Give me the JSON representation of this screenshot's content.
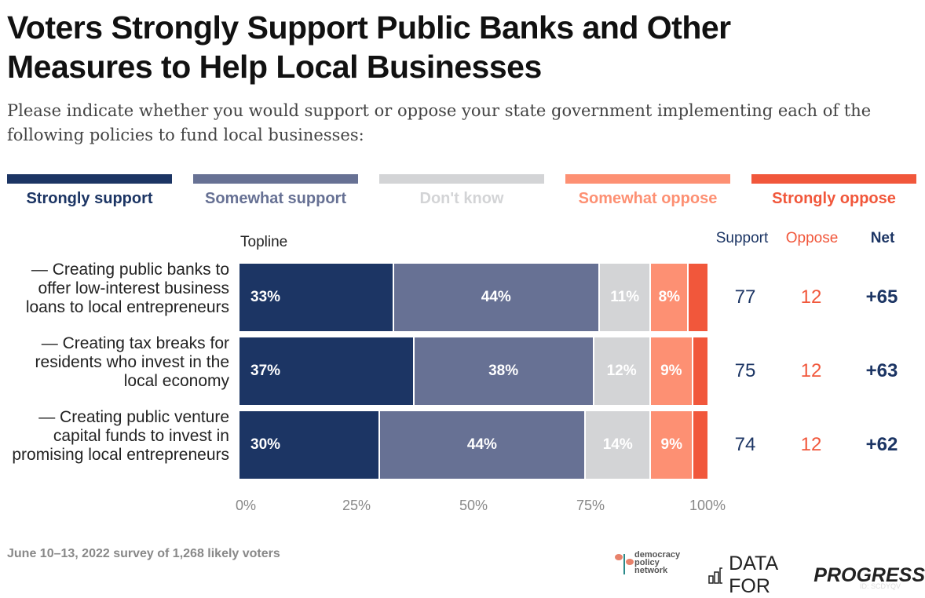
{
  "chart_data": {
    "type": "bar",
    "orientation": "horizontal",
    "stacked": true,
    "title": "Voters Strongly Support Public Banks and Other Measures to Help Local Businesses",
    "subtitle": "Please indicate whether you would support or oppose your state government implementing each of the following policies to fund local businesses:",
    "column_label": "Topline",
    "categories": [
      "— Creating public banks to offer low-interest business loans to local entrepreneurs",
      "— Creating tax breaks for residents who invest in the local economy",
      "— Creating public venture capital funds to invest in promising local entrepreneurs"
    ],
    "series": [
      {
        "name": "Strongly support",
        "color": "#1c3564",
        "values": [
          33,
          37,
          30
        ],
        "labels": [
          "33%",
          "37%",
          "30%"
        ]
      },
      {
        "name": "Somewhat support",
        "color": "#677194",
        "values": [
          44,
          38,
          44
        ],
        "labels": [
          "44%",
          "38%",
          "44%"
        ]
      },
      {
        "name": "Don't know",
        "color": "#d3d4d6",
        "values": [
          11,
          12,
          14
        ],
        "labels": [
          "11%",
          "12%",
          "14%"
        ]
      },
      {
        "name": "Somewhat oppose",
        "color": "#fd9073",
        "values": [
          8,
          9,
          9
        ],
        "labels": [
          "8%",
          "9%",
          "9%"
        ]
      },
      {
        "name": "Strongly oppose",
        "color": "#f1573b",
        "values": [
          4,
          3,
          3
        ],
        "labels": [
          "",
          "",
          ""
        ]
      }
    ],
    "summary_headers": {
      "support": "Support",
      "oppose": "Oppose",
      "net": "Net"
    },
    "support": [
      "77",
      "75",
      "74"
    ],
    "oppose": [
      "12",
      "12",
      "12"
    ],
    "net": [
      "+65",
      "+63",
      "+62"
    ],
    "xlim": [
      0,
      100
    ],
    "xticks": [
      "0%",
      "25%",
      "50%",
      "75%",
      "100%"
    ],
    "legend": "top"
  },
  "footer": {
    "source": "June 10–13, 2022 survey of 1,268 likely voters",
    "logo1": "democracy policy network",
    "logo2_a": "DATA FOR",
    "logo2_b": "PROGRESS",
    "id": "ID: SCDYQV"
  }
}
